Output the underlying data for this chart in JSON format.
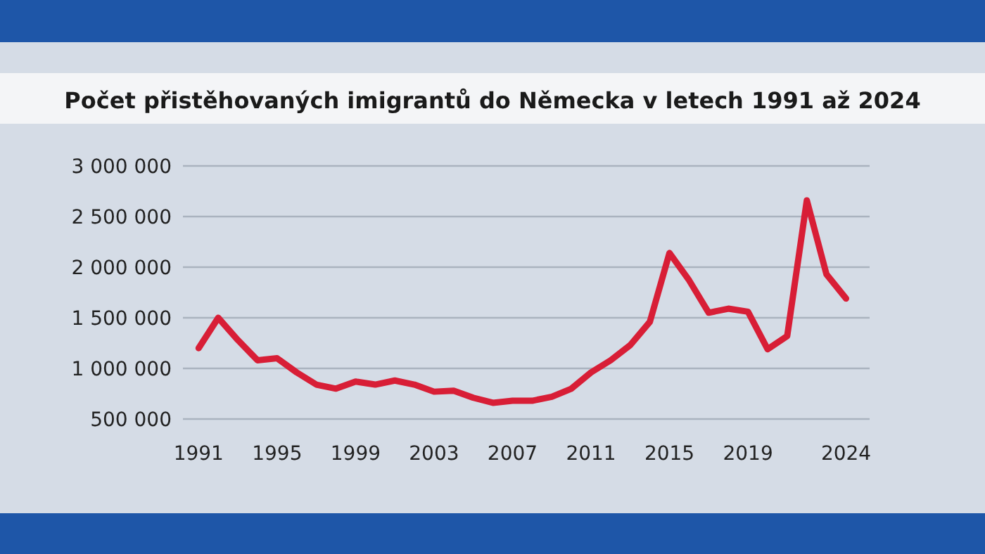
{
  "chart_data": {
    "type": "line",
    "title": "Počet přistěhovaných imigrantů do Německa v letech 1991 až 2024",
    "x": [
      1991,
      1992,
      1993,
      1994,
      1995,
      1996,
      1997,
      1998,
      1999,
      2000,
      2001,
      2002,
      2003,
      2004,
      2005,
      2006,
      2007,
      2008,
      2009,
      2010,
      2011,
      2012,
      2013,
      2014,
      2015,
      2016,
      2017,
      2018,
      2019,
      2020,
      2021,
      2022,
      2023,
      2024
    ],
    "series": [
      {
        "color": "#d81e36",
        "values": [
          1200000,
          1500000,
          1280000,
          1080000,
          1100000,
          960000,
          840000,
          800000,
          870000,
          840000,
          880000,
          840000,
          770000,
          780000,
          710000,
          660000,
          680000,
          680000,
          720000,
          800000,
          960000,
          1080000,
          1230000,
          1460000,
          2140000,
          1870000,
          1550000,
          1590000,
          1560000,
          1190000,
          1320000,
          2660000,
          1930000,
          1690000
        ]
      }
    ],
    "xlim": [
      1990.2,
      2025.2
    ],
    "xticks": [
      1991,
      1995,
      1999,
      2003,
      2007,
      2011,
      2015,
      2019,
      2024
    ],
    "ylim": [
      500000,
      3000000
    ],
    "yticks": [
      {
        "value": 500000,
        "label": "500 000"
      },
      {
        "value": 1000000,
        "label": "1 000 000"
      },
      {
        "value": 1500000,
        "label": "1 500 000"
      },
      {
        "value": 2000000,
        "label": "2 000 000"
      },
      {
        "value": 2500000,
        "label": "2 500 000"
      },
      {
        "value": 3000000,
        "label": "3 000 000"
      }
    ],
    "grid": "y",
    "marker": "none",
    "line_style": "solid"
  }
}
